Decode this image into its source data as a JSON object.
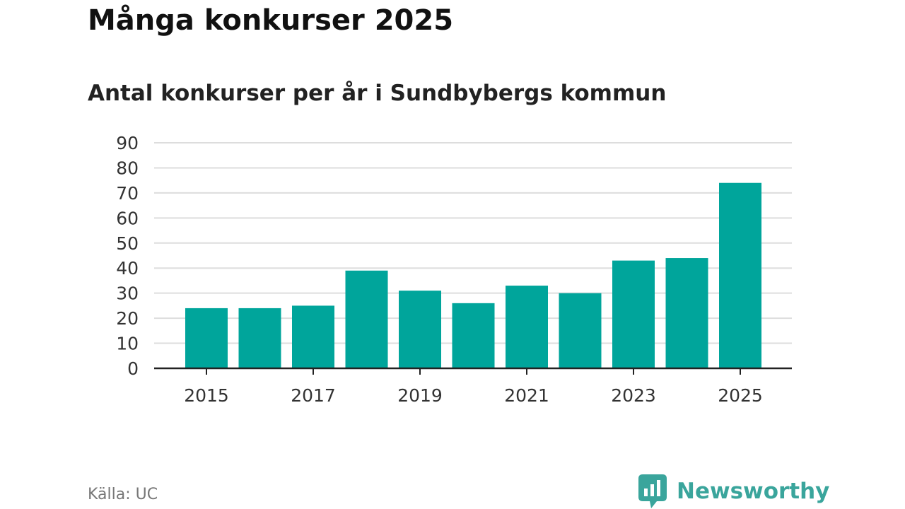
{
  "title": "Många konkurser 2025",
  "subtitle": "Antal konkurser per år i Sundbybergs kommun",
  "source": "Källa: UC",
  "brand": {
    "name": "Newsworthy",
    "icon": "newsworthy-logo-icon"
  },
  "colors": {
    "bar": "#00a59b",
    "grid": "#dddddd",
    "axis": "#222222",
    "brand": "#3aa59c"
  },
  "chart_data": {
    "type": "bar",
    "title": "Många konkurser 2025",
    "subtitle": "Antal konkurser per år i Sundbybergs kommun",
    "xlabel": "",
    "ylabel": "",
    "categories": [
      "2015",
      "2016",
      "2017",
      "2018",
      "2019",
      "2020",
      "2021",
      "2022",
      "2023",
      "2024",
      "2025"
    ],
    "values": [
      24,
      24,
      25,
      39,
      31,
      26,
      33,
      30,
      43,
      44,
      74
    ],
    "x_tick_labels": [
      "2015",
      "2017",
      "2019",
      "2021",
      "2023",
      "2025"
    ],
    "y_ticks": [
      0,
      10,
      20,
      30,
      40,
      50,
      60,
      70,
      80,
      90
    ],
    "ylim": [
      0,
      90
    ],
    "grid": true,
    "legend": "none"
  }
}
